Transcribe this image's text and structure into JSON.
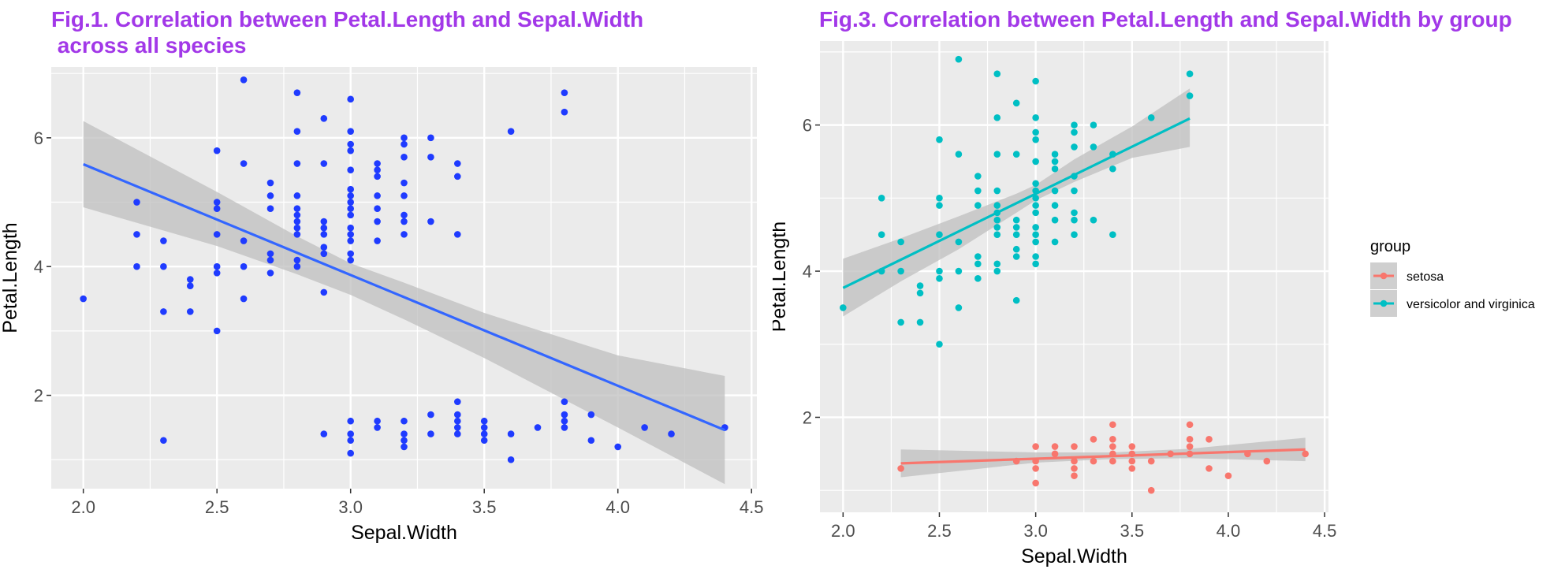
{
  "chart_data": [
    {
      "type": "scatter",
      "title": "Fig.1. Correlation between Petal.Length and Sepal.Width\n across all species",
      "xlabel": "Sepal.Width",
      "ylabel": "Petal.Length",
      "xlim": [
        1.88,
        4.52
      ],
      "ylim": [
        0.55,
        7.1
      ],
      "xticks": [
        2.0,
        2.5,
        3.0,
        3.5,
        4.0,
        4.5
      ],
      "xtick_labels": [
        "2.0",
        "2.5",
        "3.0",
        "3.5",
        "4.0",
        "4.5"
      ],
      "yticks": [
        2,
        4,
        6
      ],
      "ytick_labels": [
        "2",
        "4",
        "6"
      ],
      "grid": true,
      "colors": {
        "points": "#1f3bff",
        "line": "#3366ff",
        "band": "#bdbdbd",
        "panel": "#ebebeb"
      },
      "points": [
        [
          2.0,
          3.5
        ],
        [
          2.2,
          5.0
        ],
        [
          2.2,
          4.5
        ],
        [
          2.2,
          4.0
        ],
        [
          2.3,
          4.4
        ],
        [
          2.3,
          4.0
        ],
        [
          2.3,
          3.3
        ],
        [
          2.3,
          1.3
        ],
        [
          2.4,
          3.8
        ],
        [
          2.4,
          3.7
        ],
        [
          2.4,
          3.3
        ],
        [
          2.5,
          5.8
        ],
        [
          2.5,
          5.0
        ],
        [
          2.5,
          4.9
        ],
        [
          2.5,
          4.5
        ],
        [
          2.5,
          4.0
        ],
        [
          2.5,
          3.9
        ],
        [
          2.5,
          3.0
        ],
        [
          2.6,
          6.9
        ],
        [
          2.6,
          5.6
        ],
        [
          2.6,
          4.4
        ],
        [
          2.6,
          4.0
        ],
        [
          2.6,
          3.5
        ],
        [
          2.7,
          5.3
        ],
        [
          2.7,
          5.1
        ],
        [
          2.7,
          4.9
        ],
        [
          2.7,
          4.2
        ],
        [
          2.7,
          4.1
        ],
        [
          2.7,
          3.9
        ],
        [
          2.8,
          6.7
        ],
        [
          2.8,
          6.1
        ],
        [
          2.8,
          5.6
        ],
        [
          2.8,
          5.1
        ],
        [
          2.8,
          4.9
        ],
        [
          2.8,
          4.8
        ],
        [
          2.8,
          4.7
        ],
        [
          2.8,
          4.6
        ],
        [
          2.8,
          4.5
        ],
        [
          2.8,
          4.1
        ],
        [
          2.8,
          4.0
        ],
        [
          2.9,
          6.3
        ],
        [
          2.9,
          5.6
        ],
        [
          2.9,
          4.7
        ],
        [
          2.9,
          4.6
        ],
        [
          2.9,
          4.5
        ],
        [
          2.9,
          4.3
        ],
        [
          2.9,
          4.2
        ],
        [
          2.9,
          3.6
        ],
        [
          2.9,
          1.4
        ],
        [
          3.0,
          6.6
        ],
        [
          3.0,
          6.1
        ],
        [
          3.0,
          5.9
        ],
        [
          3.0,
          5.8
        ],
        [
          3.0,
          5.5
        ],
        [
          3.0,
          5.2
        ],
        [
          3.0,
          5.1
        ],
        [
          3.0,
          5.0
        ],
        [
          3.0,
          4.9
        ],
        [
          3.0,
          4.8
        ],
        [
          3.0,
          4.6
        ],
        [
          3.0,
          4.5
        ],
        [
          3.0,
          4.4
        ],
        [
          3.0,
          4.2
        ],
        [
          3.0,
          4.1
        ],
        [
          3.0,
          1.6
        ],
        [
          3.0,
          1.4
        ],
        [
          3.0,
          1.3
        ],
        [
          3.0,
          1.1
        ],
        [
          3.1,
          5.6
        ],
        [
          3.1,
          5.5
        ],
        [
          3.1,
          5.4
        ],
        [
          3.1,
          5.1
        ],
        [
          3.1,
          4.9
        ],
        [
          3.1,
          4.7
        ],
        [
          3.1,
          4.4
        ],
        [
          3.1,
          1.6
        ],
        [
          3.1,
          1.5
        ],
        [
          3.2,
          6.0
        ],
        [
          3.2,
          5.9
        ],
        [
          3.2,
          5.7
        ],
        [
          3.2,
          5.3
        ],
        [
          3.2,
          5.1
        ],
        [
          3.2,
          4.8
        ],
        [
          3.2,
          4.7
        ],
        [
          3.2,
          4.5
        ],
        [
          3.2,
          1.6
        ],
        [
          3.2,
          1.4
        ],
        [
          3.2,
          1.3
        ],
        [
          3.2,
          1.2
        ],
        [
          3.3,
          6.0
        ],
        [
          3.3,
          5.7
        ],
        [
          3.3,
          4.7
        ],
        [
          3.3,
          1.7
        ],
        [
          3.3,
          1.4
        ],
        [
          3.4,
          5.6
        ],
        [
          3.4,
          5.4
        ],
        [
          3.4,
          4.5
        ],
        [
          3.4,
          1.9
        ],
        [
          3.4,
          1.7
        ],
        [
          3.4,
          1.6
        ],
        [
          3.4,
          1.5
        ],
        [
          3.4,
          1.4
        ],
        [
          3.5,
          1.6
        ],
        [
          3.5,
          1.5
        ],
        [
          3.5,
          1.4
        ],
        [
          3.5,
          1.3
        ],
        [
          3.6,
          6.1
        ],
        [
          3.6,
          1.4
        ],
        [
          3.6,
          1.0
        ],
        [
          3.7,
          1.5
        ],
        [
          3.8,
          6.7
        ],
        [
          3.8,
          6.4
        ],
        [
          3.8,
          1.9
        ],
        [
          3.8,
          1.7
        ],
        [
          3.8,
          1.6
        ],
        [
          3.8,
          1.5
        ],
        [
          3.9,
          1.7
        ],
        [
          3.9,
          1.3
        ],
        [
          4.0,
          1.2
        ],
        [
          4.1,
          1.5
        ],
        [
          4.2,
          1.4
        ],
        [
          4.4,
          1.5
        ]
      ],
      "fit": {
        "x": [
          2.0,
          4.4
        ],
        "y": [
          5.59,
          1.46
        ]
      },
      "band": {
        "x": [
          2.0,
          2.5,
          2.8,
          3.0,
          3.2,
          3.5,
          4.0,
          4.4
        ],
        "lower": [
          4.92,
          4.32,
          3.88,
          3.56,
          3.18,
          2.58,
          1.5,
          0.62
        ],
        "upper": [
          6.26,
          5.16,
          4.47,
          4.05,
          3.75,
          3.28,
          2.62,
          2.3
        ]
      }
    },
    {
      "type": "scatter",
      "title": "Fig.3. Correlation between Petal.Length and Sepal.Width by group",
      "xlabel": "Sepal.Width",
      "ylabel": "Petal.Length",
      "xlim": [
        1.88,
        4.52
      ],
      "ylim": [
        0.7,
        7.15
      ],
      "xticks": [
        2.0,
        2.5,
        3.0,
        3.5,
        4.0,
        4.5
      ],
      "xtick_labels": [
        "2.0",
        "2.5",
        "3.0",
        "3.5",
        "4.0",
        "4.5"
      ],
      "yticks": [
        2,
        4,
        6
      ],
      "ytick_labels": [
        "2",
        "4",
        "6"
      ],
      "grid": true,
      "legend": {
        "title": "group",
        "position": "right"
      },
      "colors": {
        "panel": "#ebebeb",
        "band": "#bdbdbd"
      },
      "series": [
        {
          "name": "setosa",
          "color": "#f8766d",
          "points": [
            [
              2.3,
              1.3
            ],
            [
              2.9,
              1.4
            ],
            [
              3.0,
              1.6
            ],
            [
              3.0,
              1.4
            ],
            [
              3.0,
              1.3
            ],
            [
              3.0,
              1.1
            ],
            [
              3.1,
              1.6
            ],
            [
              3.1,
              1.5
            ],
            [
              3.2,
              1.6
            ],
            [
              3.2,
              1.4
            ],
            [
              3.2,
              1.3
            ],
            [
              3.2,
              1.2
            ],
            [
              3.3,
              1.7
            ],
            [
              3.3,
              1.4
            ],
            [
              3.4,
              1.9
            ],
            [
              3.4,
              1.7
            ],
            [
              3.4,
              1.6
            ],
            [
              3.4,
              1.5
            ],
            [
              3.4,
              1.4
            ],
            [
              3.5,
              1.6
            ],
            [
              3.5,
              1.5
            ],
            [
              3.5,
              1.4
            ],
            [
              3.5,
              1.3
            ],
            [
              3.6,
              1.4
            ],
            [
              3.6,
              1.0
            ],
            [
              3.7,
              1.5
            ],
            [
              3.8,
              1.9
            ],
            [
              3.8,
              1.7
            ],
            [
              3.8,
              1.6
            ],
            [
              3.8,
              1.5
            ],
            [
              3.9,
              1.7
            ],
            [
              3.9,
              1.3
            ],
            [
              4.0,
              1.2
            ],
            [
              4.1,
              1.5
            ],
            [
              4.2,
              1.4
            ],
            [
              4.4,
              1.5
            ]
          ],
          "fit": {
            "x": [
              2.3,
              4.4
            ],
            "y": [
              1.37,
              1.56
            ]
          },
          "band": {
            "x": [
              2.3,
              3.0,
              3.4,
              3.8,
              4.4
            ],
            "lower": [
              1.18,
              1.38,
              1.43,
              1.44,
              1.4
            ],
            "upper": [
              1.56,
              1.52,
              1.52,
              1.57,
              1.72
            ]
          }
        },
        {
          "name": "versicolor and virginica",
          "color": "#00bfc4",
          "points": [
            [
              2.0,
              3.5
            ],
            [
              2.2,
              5.0
            ],
            [
              2.2,
              4.5
            ],
            [
              2.2,
              4.0
            ],
            [
              2.3,
              4.4
            ],
            [
              2.3,
              4.0
            ],
            [
              2.3,
              3.3
            ],
            [
              2.4,
              3.8
            ],
            [
              2.4,
              3.7
            ],
            [
              2.4,
              3.3
            ],
            [
              2.5,
              5.8
            ],
            [
              2.5,
              5.0
            ],
            [
              2.5,
              4.9
            ],
            [
              2.5,
              4.5
            ],
            [
              2.5,
              4.0
            ],
            [
              2.5,
              3.9
            ],
            [
              2.5,
              3.0
            ],
            [
              2.6,
              6.9
            ],
            [
              2.6,
              5.6
            ],
            [
              2.6,
              4.4
            ],
            [
              2.6,
              4.0
            ],
            [
              2.6,
              3.5
            ],
            [
              2.7,
              5.3
            ],
            [
              2.7,
              5.1
            ],
            [
              2.7,
              4.9
            ],
            [
              2.7,
              4.2
            ],
            [
              2.7,
              4.1
            ],
            [
              2.7,
              3.9
            ],
            [
              2.8,
              6.7
            ],
            [
              2.8,
              6.1
            ],
            [
              2.8,
              5.6
            ],
            [
              2.8,
              5.1
            ],
            [
              2.8,
              4.9
            ],
            [
              2.8,
              4.8
            ],
            [
              2.8,
              4.7
            ],
            [
              2.8,
              4.6
            ],
            [
              2.8,
              4.5
            ],
            [
              2.8,
              4.1
            ],
            [
              2.8,
              4.0
            ],
            [
              2.9,
              6.3
            ],
            [
              2.9,
              5.6
            ],
            [
              2.9,
              4.7
            ],
            [
              2.9,
              4.6
            ],
            [
              2.9,
              4.5
            ],
            [
              2.9,
              4.3
            ],
            [
              2.9,
              4.2
            ],
            [
              2.9,
              3.6
            ],
            [
              3.0,
              6.6
            ],
            [
              3.0,
              6.1
            ],
            [
              3.0,
              5.9
            ],
            [
              3.0,
              5.8
            ],
            [
              3.0,
              5.5
            ],
            [
              3.0,
              5.2
            ],
            [
              3.0,
              5.1
            ],
            [
              3.0,
              5.0
            ],
            [
              3.0,
              4.9
            ],
            [
              3.0,
              4.8
            ],
            [
              3.0,
              4.6
            ],
            [
              3.0,
              4.5
            ],
            [
              3.0,
              4.4
            ],
            [
              3.0,
              4.2
            ],
            [
              3.0,
              4.1
            ],
            [
              3.1,
              5.6
            ],
            [
              3.1,
              5.5
            ],
            [
              3.1,
              5.4
            ],
            [
              3.1,
              5.1
            ],
            [
              3.1,
              4.9
            ],
            [
              3.1,
              4.7
            ],
            [
              3.1,
              4.4
            ],
            [
              3.2,
              6.0
            ],
            [
              3.2,
              5.9
            ],
            [
              3.2,
              5.7
            ],
            [
              3.2,
              5.3
            ],
            [
              3.2,
              5.1
            ],
            [
              3.2,
              4.8
            ],
            [
              3.2,
              4.7
            ],
            [
              3.2,
              4.5
            ],
            [
              3.3,
              6.0
            ],
            [
              3.3,
              5.7
            ],
            [
              3.3,
              4.7
            ],
            [
              3.4,
              5.6
            ],
            [
              3.4,
              5.4
            ],
            [
              3.4,
              4.5
            ],
            [
              3.6,
              6.1
            ],
            [
              3.8,
              6.7
            ],
            [
              3.8,
              6.4
            ]
          ],
          "fit": {
            "x": [
              2.0,
              3.8
            ],
            "y": [
              3.77,
              6.09
            ]
          },
          "band": {
            "x": [
              2.0,
              2.3,
              2.6,
              2.9,
              3.0,
              3.2,
              3.5,
              3.8
            ],
            "lower": [
              3.38,
              3.86,
              4.3,
              4.8,
              4.97,
              5.22,
              5.55,
              5.7
            ],
            "upper": [
              4.17,
              4.45,
              4.75,
              5.06,
              5.18,
              5.53,
              5.98,
              6.5
            ]
          }
        }
      ]
    }
  ]
}
